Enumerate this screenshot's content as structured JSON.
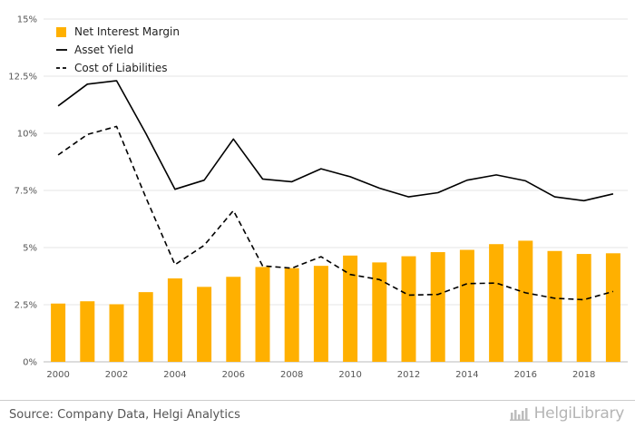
{
  "chart_data": {
    "type": "bar",
    "categories": [
      "2000",
      "2001",
      "2002",
      "2003",
      "2004",
      "2005",
      "2006",
      "2007",
      "2008",
      "2009",
      "2010",
      "2011",
      "2012",
      "2013",
      "2014",
      "2015",
      "2016",
      "2017",
      "2018",
      "2019"
    ],
    "x_tick_labels": [
      "2000",
      "2002",
      "2004",
      "2006",
      "2008",
      "2010",
      "2012",
      "2014",
      "2016",
      "2018"
    ],
    "y_tick_labels": [
      "0%",
      "2.5%",
      "5%",
      "7.5%",
      "10%",
      "12.5%",
      "15%"
    ],
    "y_ticks": [
      0,
      2.5,
      5,
      7.5,
      10,
      12.5,
      15
    ],
    "ylim": [
      0,
      15
    ],
    "grid": true,
    "legend_position": "top-left",
    "series": [
      {
        "name": "Net Interest Margin",
        "type": "bar",
        "color": "#FFB000",
        "values": [
          2.55,
          2.65,
          2.52,
          3.05,
          3.65,
          3.28,
          3.72,
          4.15,
          4.1,
          4.2,
          4.65,
          4.35,
          4.62,
          4.8,
          4.9,
          5.15,
          5.3,
          4.85,
          4.72,
          4.75
        ]
      },
      {
        "name": "Asset Yield",
        "type": "line",
        "style": "solid",
        "color": "#000000",
        "values": [
          11.2,
          12.15,
          12.3,
          10.0,
          7.55,
          7.95,
          9.75,
          8.0,
          7.88,
          8.45,
          8.1,
          7.6,
          7.22,
          7.4,
          7.95,
          8.18,
          7.92,
          7.22,
          7.05,
          7.35
        ]
      },
      {
        "name": "Cost of Liabilities",
        "type": "line",
        "style": "dashed",
        "color": "#000000",
        "values": [
          9.05,
          9.95,
          10.3,
          7.2,
          4.25,
          5.1,
          6.62,
          4.2,
          4.1,
          4.6,
          3.82,
          3.6,
          2.92,
          2.95,
          3.42,
          3.45,
          3.02,
          2.78,
          2.72,
          3.08
        ]
      }
    ]
  },
  "footer": {
    "source": "Source: Company Data, Helgi Analytics",
    "brand": "HelgiLibrary"
  },
  "icons": {
    "brand_logo": "helgi-library-logo-icon"
  }
}
